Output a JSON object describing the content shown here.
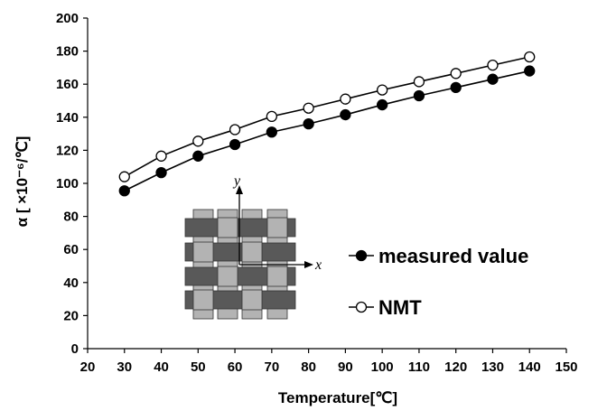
{
  "chart_data": {
    "type": "line",
    "ylabel": "α [ ×10⁻⁶/℃]",
    "xlabel": "Temperature[℃]",
    "x": [
      30,
      40,
      50,
      60,
      70,
      80,
      90,
      100,
      110,
      120,
      130,
      140
    ],
    "xlim": [
      20,
      150
    ],
    "ylim": [
      0,
      200
    ],
    "x_ticks": [
      "20",
      "30",
      "40",
      "50",
      "60",
      "70",
      "80",
      "90",
      "100",
      "110",
      "120",
      "130",
      "140",
      "150"
    ],
    "y_ticks": [
      "0",
      "20",
      "40",
      "60",
      "80",
      "100",
      "120",
      "140",
      "160",
      "180",
      "200"
    ],
    "grid": false,
    "legend_position": "bottom-right",
    "series": [
      {
        "name": "measured value",
        "marker": "filled-circle",
        "color": "#000000",
        "values": [
          95.5,
          106.5,
          116.5,
          123.5,
          131,
          136,
          141.5,
          147.5,
          153,
          158,
          163,
          168
        ]
      },
      {
        "name": "NMT",
        "marker": "open-circle",
        "color": "#000000",
        "values": [
          104,
          116.5,
          125.5,
          132.5,
          140.5,
          145.5,
          151,
          156.5,
          161.5,
          166.5,
          171.5,
          176.5
        ]
      }
    ],
    "inset": {
      "description_icon": "plain-weave-fabric-icon",
      "axis_labels": [
        "x",
        "y"
      ]
    }
  }
}
